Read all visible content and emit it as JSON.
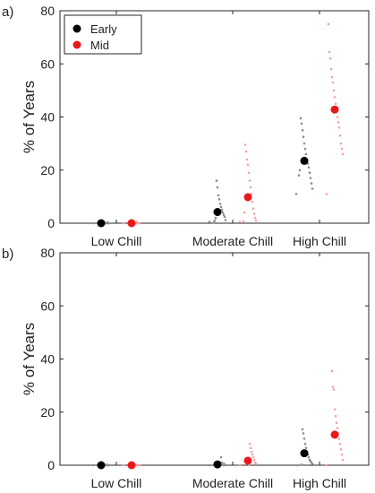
{
  "chart_data": [
    {
      "type": "scatter",
      "panel_label": "a)",
      "ylabel": "% of Years",
      "ylim": [
        0,
        80
      ],
      "yticks": [
        0,
        20,
        40,
        60,
        80
      ],
      "categories": [
        "Low Chill",
        "Moderate Chill",
        "High Chill"
      ],
      "legend": {
        "placement": "top-left",
        "entries": [
          "Early",
          "Mid"
        ]
      },
      "series": [
        {
          "name": "Early",
          "color": "#000000",
          "means": [
            0,
            4.2,
            23.5
          ],
          "points": [
            [
              0,
              0,
              0,
              0.3,
              0,
              0,
              0,
              0.6,
              0,
              0,
              0,
              0,
              0
            ],
            [
              0.5,
              1.2,
              2.4,
              3.1,
              4.0,
              5.0,
              6.1,
              7.3,
              9.0,
              10.5,
              13.5,
              16.0,
              2.0,
              1.0,
              0.3
            ],
            [
              11,
              13,
              15,
              17,
              19,
              21,
              22.5,
              24,
              26,
              28,
              30,
              32.5,
              35,
              37.5,
              39.5,
              20,
              18
            ]
          ]
        },
        {
          "name": "Mid",
          "color": "#e8191c",
          "means": [
            0,
            9.8,
            42.8
          ],
          "points": [
            [
              0,
              0,
              0,
              0,
              0.4,
              0,
              0,
              0,
              0,
              0,
              0,
              0
            ],
            [
              0.5,
              1.0,
              2.0,
              3.5,
              5.5,
              8.0,
              11,
              13.5,
              16,
              19,
              22,
              24,
              27,
              29.5,
              4.0,
              0.8
            ],
            [
              11,
              26,
              28,
              30,
              33,
              36,
              38,
              40,
              42,
              45,
              47.5,
              50,
              53,
              55,
              58,
              62,
              64.5,
              75
            ]
          ]
        }
      ]
    },
    {
      "type": "scatter",
      "panel_label": "b)",
      "ylabel": "% of Years",
      "ylim": [
        0,
        80
      ],
      "yticks": [
        0,
        20,
        40,
        60,
        80
      ],
      "categories": [
        "Low Chill",
        "Moderate Chill",
        "High Chill"
      ],
      "series": [
        {
          "name": "Early",
          "color": "#000000",
          "means": [
            0,
            0.3,
            4.5
          ],
          "points": [
            [
              0,
              0,
              0,
              0,
              0.2,
              0,
              0,
              0,
              0,
              0,
              0
            ],
            [
              0,
              0,
              0.3,
              0.5,
              0,
              1.0,
              3.0,
              0,
              0.2,
              0,
              0
            ],
            [
              0,
              0.5,
              1.0,
              1.5,
              2.0,
              3.0,
              4.0,
              5.0,
              6.5,
              8.0,
              10.0,
              12.0,
              13.5,
              0.2
            ]
          ]
        },
        {
          "name": "Mid",
          "color": "#e8191c",
          "means": [
            0,
            1.7,
            11.5
          ],
          "points": [
            [
              0,
              0,
              0,
              0,
              0,
              0,
              0,
              0,
              0
            ],
            [
              0,
              0.5,
              1.0,
              2.0,
              3.0,
              4.0,
              5.0,
              6.5,
              8.0,
              0.2
            ],
            [
              0,
              2.0,
              4.0,
              6.0,
              8.0,
              10.0,
              12.0,
              14.0,
              16.0,
              18.5,
              21.0,
              28.5,
              29.5,
              35.5
            ]
          ]
        }
      ]
    }
  ]
}
